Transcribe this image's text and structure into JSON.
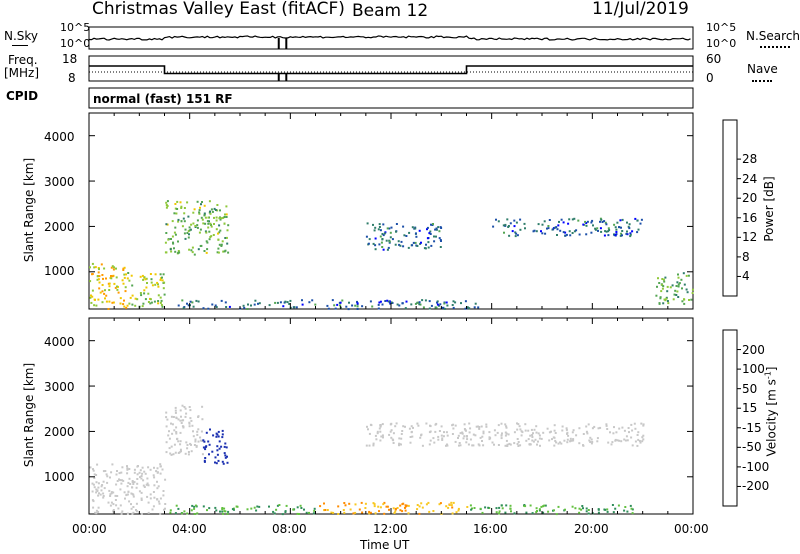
{
  "header": {
    "site": "Christmas Valley East (fitACF)",
    "beam": "Beam 12",
    "date": "11/Jul/2019"
  },
  "strip_labels": {
    "nsky": "N.Sky",
    "nsearch": "N.Search",
    "freq_l1": "Freq.",
    "freq_l2": "[MHz]",
    "nave": "Nave",
    "cpid": "CPID",
    "mode": "normal (fast) 151 RF",
    "noise_left_ticks": [
      "10^5",
      "10^0"
    ],
    "noise_right_ticks": [
      "10^5",
      "10^0"
    ],
    "freq_ticks": [
      "18",
      "8"
    ],
    "nave_ticks": [
      "60",
      "0"
    ]
  },
  "axes": {
    "ylabel": "Slant Range [km]",
    "xlabel": "Time UT",
    "yticks": [
      "1000",
      "2000",
      "3000",
      "4000"
    ],
    "xticks": [
      "00:00",
      "04:00",
      "08:00",
      "12:00",
      "16:00",
      "20:00",
      "00:00"
    ]
  },
  "colorbars": {
    "power": {
      "label": "Power [dB]",
      "ticks": [
        "4",
        "8",
        "12",
        "16",
        "20",
        "24",
        "28"
      ],
      "colors": [
        "#0000ff",
        "#1c4fa8",
        "#2f7d6a",
        "#53a552",
        "#8fc83a",
        "#f0c800",
        "#ff9a00",
        "#ff5a00",
        "#ff0000"
      ]
    },
    "velocity": {
      "label": "Velocity [m s",
      "label_sup": "-1",
      "label_end": "]",
      "ticks": [
        "200",
        "100",
        "50",
        "15",
        "-15",
        "-50",
        "-100",
        "-200"
      ],
      "colors": [
        "#1a2fb0",
        "#2060c0",
        "#2f8d5a",
        "#63c040",
        "#c8c8c8",
        "#f8c820",
        "#ff8c00",
        "#ff5000",
        "#ee0000"
      ]
    }
  },
  "chart_data": {
    "type": "heatmap",
    "x_range_hours": [
      0,
      24
    ],
    "y_range_km": [
      180,
      4500
    ],
    "frequency_mhz_segments": [
      {
        "from": 0,
        "to": 3,
        "value": 14
      },
      {
        "from": 3,
        "to": 15,
        "value": 11
      },
      {
        "from": 15,
        "to": 24,
        "value": 14
      }
    ],
    "power_regions": [
      {
        "from_h": 0,
        "to_h": 1.5,
        "from_km": 200,
        "to_km": 1200,
        "power_db": 22
      },
      {
        "from_h": 1.5,
        "to_h": 3,
        "from_km": 250,
        "to_km": 1000,
        "power_db": 18
      },
      {
        "from_h": 3.0,
        "to_h": 5.5,
        "from_km": 1400,
        "to_km": 2600,
        "power_db": 16
      },
      {
        "from_h": 3.5,
        "to_h": 15.5,
        "from_km": 200,
        "to_km": 400,
        "power_db": 8
      },
      {
        "from_h": 11.0,
        "to_h": 14.0,
        "from_km": 1500,
        "to_km": 2100,
        "power_db": 8
      },
      {
        "from_h": 16.0,
        "to_h": 22.0,
        "from_km": 1800,
        "to_km": 2200,
        "power_db": 8
      },
      {
        "from_h": 22.5,
        "to_h": 24,
        "from_km": 300,
        "to_km": 1000,
        "power_db": 14
      }
    ],
    "velocity_regions": [
      {
        "from_h": 0,
        "to_h": 3,
        "from_km": 200,
        "to_km": 1300,
        "velocity_ms": 0
      },
      {
        "from_h": 3.0,
        "to_h": 4.5,
        "from_km": 1500,
        "to_km": 2600,
        "velocity_ms": 0
      },
      {
        "from_h": 4.5,
        "to_h": 5.5,
        "from_km": 1300,
        "to_km": 2100,
        "velocity_ms": 200
      },
      {
        "from_h": 3.0,
        "to_h": 9.0,
        "from_km": 200,
        "to_km": 400,
        "velocity_ms": 30
      },
      {
        "from_h": 9.0,
        "to_h": 15.0,
        "from_km": 200,
        "to_km": 450,
        "velocity_ms": -30
      },
      {
        "from_h": 15.0,
        "to_h": 22.0,
        "from_km": 200,
        "to_km": 400,
        "velocity_ms": 30
      },
      {
        "from_h": 11.0,
        "to_h": 22.0,
        "from_km": 1700,
        "to_km": 2200,
        "velocity_ms": 0
      }
    ]
  }
}
